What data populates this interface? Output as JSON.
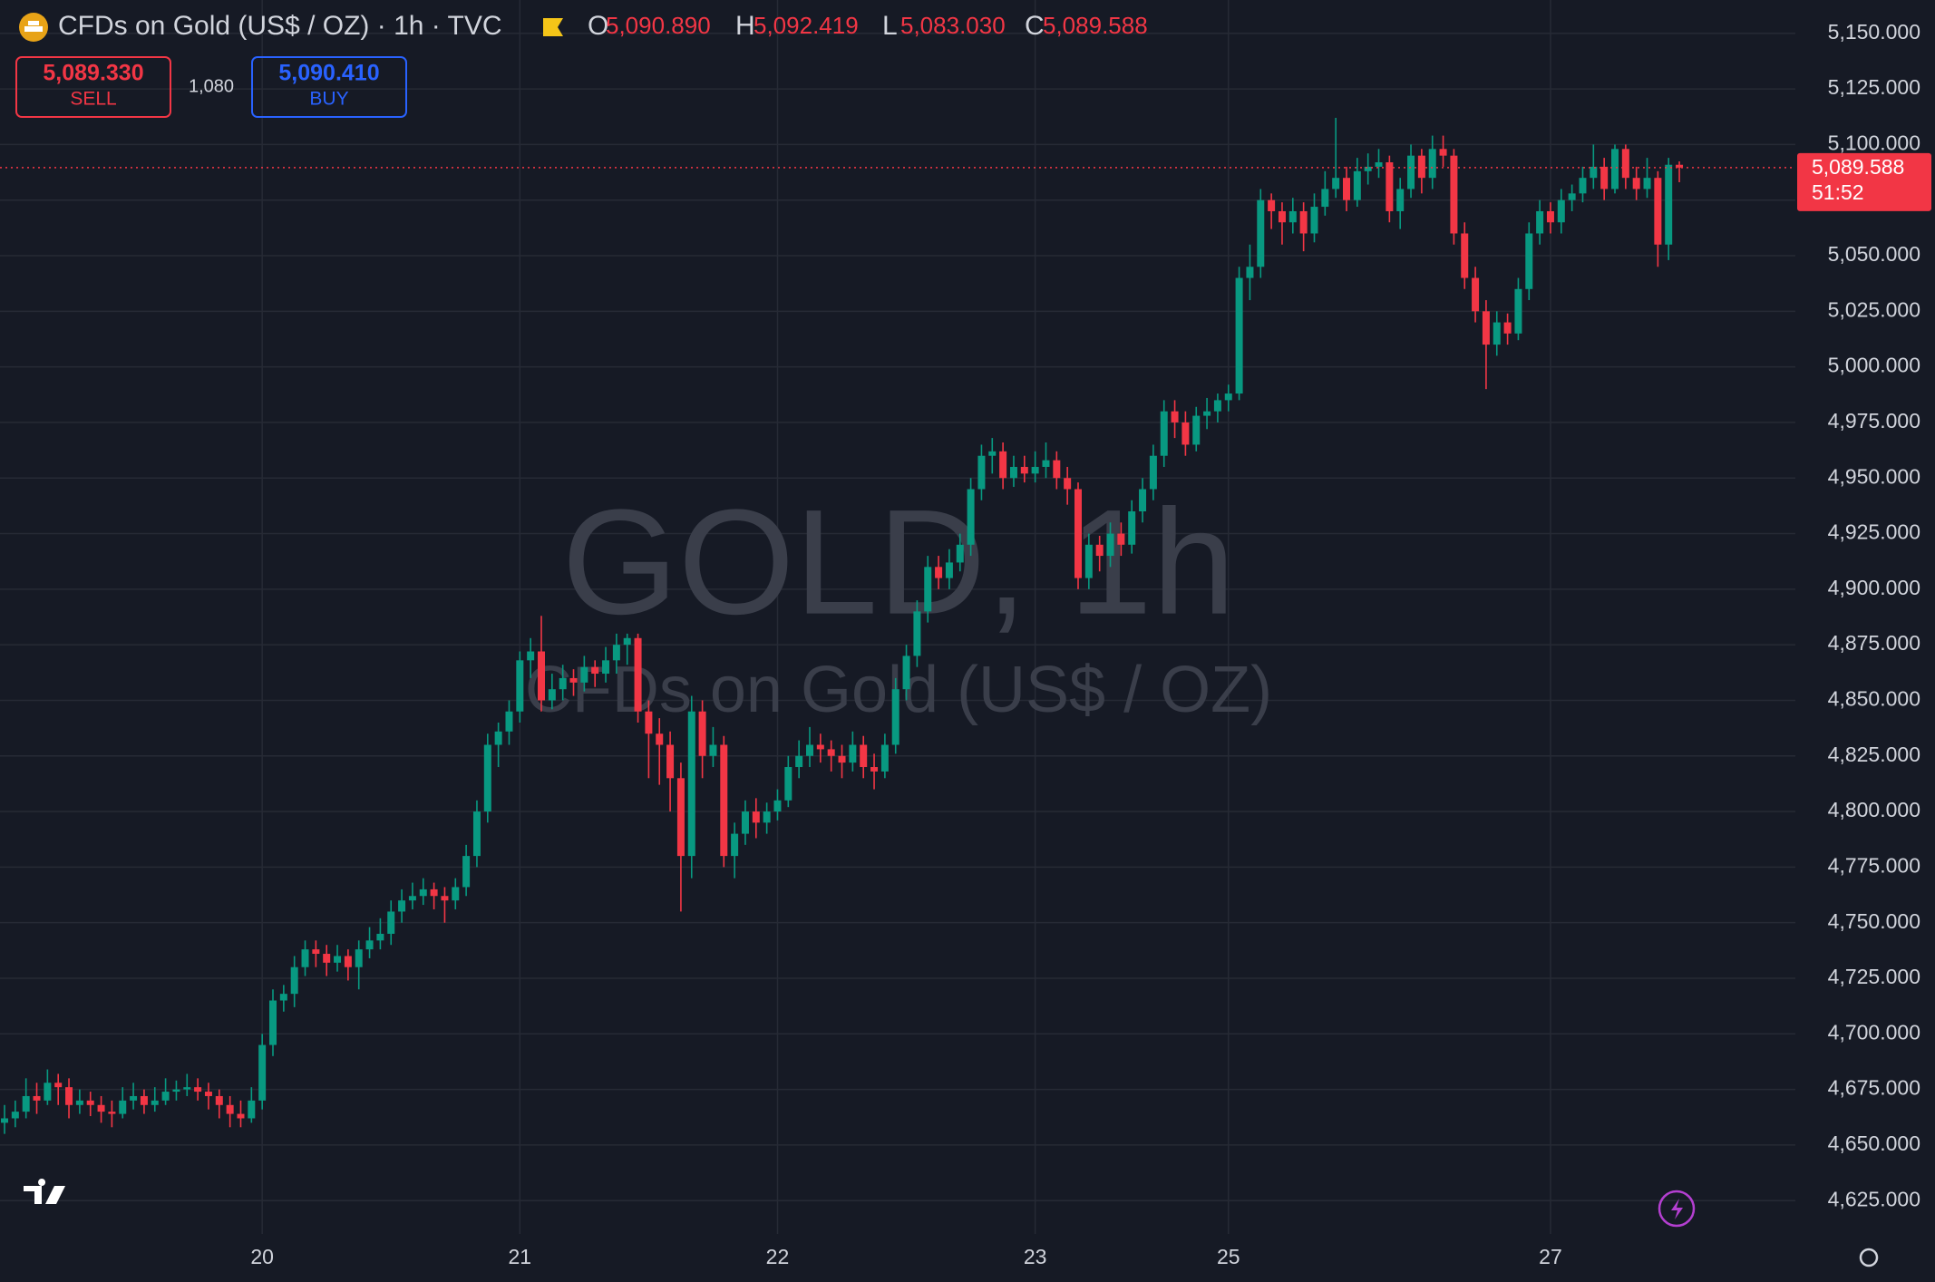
{
  "header": {
    "title": "CFDs on Gold (US$ / OZ) · 1h · TVC",
    "ohlc": [
      {
        "label": "O",
        "value": "5,090.890"
      },
      {
        "label": "H",
        "value": "5,092.419"
      },
      {
        "label": "L",
        "value": "5,083.030"
      },
      {
        "label": "C",
        "value": "5,089.588"
      }
    ],
    "sell": {
      "price": "5,089.330",
      "label": "SELL"
    },
    "spread": "1,080",
    "buy": {
      "price": "5,090.410",
      "label": "BUY"
    }
  },
  "watermark": {
    "title": "GOLD, 1h",
    "subtitle": "CFDs on Gold (US$ / OZ)"
  },
  "chart_data": {
    "type": "candlestick",
    "up_color": "#089981",
    "down_color": "#f23645",
    "grid": true,
    "ylim": [
      4610,
      5165
    ],
    "yticks": [
      {
        "value": 4625,
        "label": "4,625.000"
      },
      {
        "value": 4650,
        "label": "4,650.000"
      },
      {
        "value": 4675,
        "label": "4,675.000"
      },
      {
        "value": 4700,
        "label": "4,700.000"
      },
      {
        "value": 4725,
        "label": "4,725.000"
      },
      {
        "value": 4750,
        "label": "4,750.000"
      },
      {
        "value": 4775,
        "label": "4,775.000"
      },
      {
        "value": 4800,
        "label": "4,800.000"
      },
      {
        "value": 4825,
        "label": "4,825.000"
      },
      {
        "value": 4850,
        "label": "4,850.000"
      },
      {
        "value": 4875,
        "label": "4,875.000"
      },
      {
        "value": 4900,
        "label": "4,900.000"
      },
      {
        "value": 4925,
        "label": "4,925.000"
      },
      {
        "value": 4950,
        "label": "4,950.000"
      },
      {
        "value": 4975,
        "label": "4,975.000"
      },
      {
        "value": 5000,
        "label": "5,000.000"
      },
      {
        "value": 5025,
        "label": "5,025.000"
      },
      {
        "value": 5050,
        "label": "5,050.000"
      },
      {
        "value": 5075,
        "label": "5,075.000"
      },
      {
        "value": 5100,
        "label": "5,100.000"
      },
      {
        "value": 5125,
        "label": "5,125.000"
      },
      {
        "value": 5150,
        "label": "5,150.000"
      }
    ],
    "xticks": [
      {
        "value": 24,
        "label": "20"
      },
      {
        "value": 48,
        "label": "21"
      },
      {
        "value": 72,
        "label": "22"
      },
      {
        "value": 96,
        "label": "23"
      },
      {
        "value": 114,
        "label": "25"
      },
      {
        "value": 144,
        "label": "27"
      }
    ],
    "last_price": {
      "value": 5089.588,
      "label": "5,089.588",
      "countdown": "51:52"
    },
    "candles": [
      [
        4660,
        4668,
        4655,
        4662
      ],
      [
        4662,
        4670,
        4658,
        4665
      ],
      [
        4665,
        4680,
        4662,
        4672
      ],
      [
        4672,
        4678,
        4664,
        4670
      ],
      [
        4670,
        4684,
        4668,
        4678
      ],
      [
        4678,
        4682,
        4668,
        4676
      ],
      [
        4676,
        4680,
        4662,
        4668
      ],
      [
        4668,
        4675,
        4664,
        4670
      ],
      [
        4670,
        4674,
        4663,
        4668
      ],
      [
        4668,
        4672,
        4660,
        4665
      ],
      [
        4665,
        4670,
        4658,
        4664
      ],
      [
        4664,
        4676,
        4662,
        4670
      ],
      [
        4670,
        4678,
        4666,
        4672
      ],
      [
        4672,
        4675,
        4664,
        4668
      ],
      [
        4668,
        4676,
        4665,
        4670
      ],
      [
        4670,
        4680,
        4668,
        4674
      ],
      [
        4674,
        4679,
        4670,
        4675
      ],
      [
        4675,
        4682,
        4672,
        4676
      ],
      [
        4676,
        4680,
        4670,
        4674
      ],
      [
        4674,
        4678,
        4666,
        4672
      ],
      [
        4672,
        4675,
        4662,
        4668
      ],
      [
        4668,
        4672,
        4658,
        4664
      ],
      [
        4664,
        4670,
        4658,
        4662
      ],
      [
        4662,
        4676,
        4660,
        4670
      ],
      [
        4670,
        4700,
        4666,
        4695
      ],
      [
        4695,
        4720,
        4690,
        4715
      ],
      [
        4715,
        4722,
        4710,
        4718
      ],
      [
        4718,
        4735,
        4712,
        4730
      ],
      [
        4730,
        4742,
        4726,
        4738
      ],
      [
        4738,
        4742,
        4730,
        4736
      ],
      [
        4736,
        4740,
        4726,
        4732
      ],
      [
        4732,
        4740,
        4728,
        4735
      ],
      [
        4735,
        4738,
        4724,
        4730
      ],
      [
        4730,
        4742,
        4720,
        4738
      ],
      [
        4738,
        4748,
        4734,
        4742
      ],
      [
        4742,
        4752,
        4738,
        4745
      ],
      [
        4745,
        4760,
        4740,
        4755
      ],
      [
        4755,
        4765,
        4750,
        4760
      ],
      [
        4760,
        4768,
        4756,
        4762
      ],
      [
        4762,
        4770,
        4758,
        4765
      ],
      [
        4765,
        4768,
        4756,
        4762
      ],
      [
        4762,
        4766,
        4750,
        4760
      ],
      [
        4760,
        4770,
        4756,
        4766
      ],
      [
        4766,
        4785,
        4762,
        4780
      ],
      [
        4780,
        4805,
        4775,
        4800
      ],
      [
        4800,
        4835,
        4795,
        4830
      ],
      [
        4830,
        4840,
        4820,
        4836
      ],
      [
        4836,
        4850,
        4830,
        4845
      ],
      [
        4845,
        4872,
        4840,
        4868
      ],
      [
        4868,
        4878,
        4860,
        4872
      ],
      [
        4872,
        4888,
        4845,
        4850
      ],
      [
        4850,
        4862,
        4846,
        4855
      ],
      [
        4855,
        4866,
        4850,
        4860
      ],
      [
        4860,
        4864,
        4852,
        4858
      ],
      [
        4858,
        4870,
        4854,
        4865
      ],
      [
        4865,
        4868,
        4856,
        4862
      ],
      [
        4862,
        4874,
        4858,
        4868
      ],
      [
        4868,
        4880,
        4862,
        4875
      ],
      [
        4875,
        4880,
        4866,
        4878
      ],
      [
        4878,
        4880,
        4840,
        4845
      ],
      [
        4845,
        4850,
        4815,
        4835
      ],
      [
        4835,
        4842,
        4812,
        4830
      ],
      [
        4830,
        4836,
        4800,
        4815
      ],
      [
        4815,
        4822,
        4755,
        4780
      ],
      [
        4780,
        4852,
        4770,
        4845
      ],
      [
        4845,
        4850,
        4815,
        4825
      ],
      [
        4825,
        4838,
        4820,
        4830
      ],
      [
        4830,
        4834,
        4775,
        4780
      ],
      [
        4780,
        4795,
        4770,
        4790
      ],
      [
        4790,
        4805,
        4785,
        4800
      ],
      [
        4800,
        4806,
        4788,
        4795
      ],
      [
        4795,
        4804,
        4790,
        4800
      ],
      [
        4800,
        4810,
        4796,
        4805
      ],
      [
        4805,
        4825,
        4802,
        4820
      ],
      [
        4820,
        4832,
        4815,
        4825
      ],
      [
        4825,
        4838,
        4820,
        4830
      ],
      [
        4830,
        4835,
        4822,
        4828
      ],
      [
        4828,
        4832,
        4818,
        4825
      ],
      [
        4825,
        4830,
        4815,
        4822
      ],
      [
        4822,
        4836,
        4818,
        4830
      ],
      [
        4830,
        4834,
        4815,
        4820
      ],
      [
        4820,
        4826,
        4810,
        4818
      ],
      [
        4818,
        4835,
        4815,
        4830
      ],
      [
        4830,
        4860,
        4826,
        4855
      ],
      [
        4855,
        4875,
        4850,
        4870
      ],
      [
        4870,
        4895,
        4865,
        4890
      ],
      [
        4890,
        4915,
        4885,
        4910
      ],
      [
        4910,
        4915,
        4900,
        4905
      ],
      [
        4905,
        4918,
        4900,
        4912
      ],
      [
        4912,
        4925,
        4908,
        4920
      ],
      [
        4920,
        4950,
        4915,
        4945
      ],
      [
        4945,
        4965,
        4940,
        4960
      ],
      [
        4960,
        4968,
        4952,
        4962
      ],
      [
        4962,
        4966,
        4945,
        4950
      ],
      [
        4950,
        4960,
        4946,
        4955
      ],
      [
        4955,
        4960,
        4948,
        4952
      ],
      [
        4952,
        4962,
        4948,
        4955
      ],
      [
        4955,
        4966,
        4950,
        4958
      ],
      [
        4958,
        4962,
        4945,
        4950
      ],
      [
        4950,
        4955,
        4938,
        4945
      ],
      [
        4945,
        4948,
        4900,
        4905
      ],
      [
        4905,
        4925,
        4900,
        4920
      ],
      [
        4920,
        4924,
        4908,
        4915
      ],
      [
        4915,
        4930,
        4910,
        4925
      ],
      [
        4925,
        4930,
        4915,
        4920
      ],
      [
        4920,
        4940,
        4916,
        4935
      ],
      [
        4935,
        4950,
        4930,
        4945
      ],
      [
        4945,
        4965,
        4940,
        4960
      ],
      [
        4960,
        4985,
        4955,
        4980
      ],
      [
        4980,
        4985,
        4968,
        4975
      ],
      [
        4975,
        4980,
        4960,
        4965
      ],
      [
        4965,
        4982,
        4962,
        4978
      ],
      [
        4978,
        4986,
        4972,
        4980
      ],
      [
        4980,
        4988,
        4975,
        4985
      ],
      [
        4985,
        4992,
        4980,
        4988
      ],
      [
        4988,
        5045,
        4985,
        5040
      ],
      [
        5040,
        5055,
        5030,
        5045
      ],
      [
        5045,
        5080,
        5040,
        5075
      ],
      [
        5075,
        5078,
        5062,
        5070
      ],
      [
        5070,
        5074,
        5055,
        5065
      ],
      [
        5065,
        5076,
        5060,
        5070
      ],
      [
        5070,
        5074,
        5052,
        5060
      ],
      [
        5060,
        5078,
        5056,
        5072
      ],
      [
        5072,
        5088,
        5068,
        5080
      ],
      [
        5080,
        5112,
        5076,
        5085
      ],
      [
        5085,
        5090,
        5070,
        5075
      ],
      [
        5075,
        5094,
        5072,
        5088
      ],
      [
        5088,
        5096,
        5082,
        5090
      ],
      [
        5090,
        5098,
        5085,
        5092
      ],
      [
        5092,
        5095,
        5065,
        5070
      ],
      [
        5070,
        5085,
        5062,
        5080
      ],
      [
        5080,
        5100,
        5076,
        5095
      ],
      [
        5095,
        5098,
        5078,
        5085
      ],
      [
        5085,
        5104,
        5080,
        5098
      ],
      [
        5098,
        5104,
        5090,
        5095
      ],
      [
        5095,
        5098,
        5055,
        5060
      ],
      [
        5060,
        5065,
        5035,
        5040
      ],
      [
        5040,
        5045,
        5020,
        5025
      ],
      [
        5025,
        5030,
        4990,
        5010
      ],
      [
        5010,
        5025,
        5005,
        5020
      ],
      [
        5020,
        5024,
        5010,
        5015
      ],
      [
        5015,
        5040,
        5012,
        5035
      ],
      [
        5035,
        5065,
        5030,
        5060
      ],
      [
        5060,
        5075,
        5055,
        5070
      ],
      [
        5070,
        5074,
        5060,
        5065
      ],
      [
        5065,
        5080,
        5060,
        5075
      ],
      [
        5075,
        5082,
        5070,
        5078
      ],
      [
        5078,
        5090,
        5074,
        5085
      ],
      [
        5085,
        5100,
        5080,
        5090
      ],
      [
        5090,
        5094,
        5075,
        5080
      ],
      [
        5080,
        5100,
        5078,
        5098
      ],
      [
        5098,
        5100,
        5080,
        5085
      ],
      [
        5085,
        5090,
        5075,
        5080
      ],
      [
        5080,
        5094,
        5076,
        5085
      ],
      [
        5085,
        5088,
        5045,
        5055
      ],
      [
        5055,
        5094,
        5048,
        5090.89
      ],
      [
        5090.89,
        5092.419,
        5083.03,
        5089.588
      ]
    ]
  }
}
